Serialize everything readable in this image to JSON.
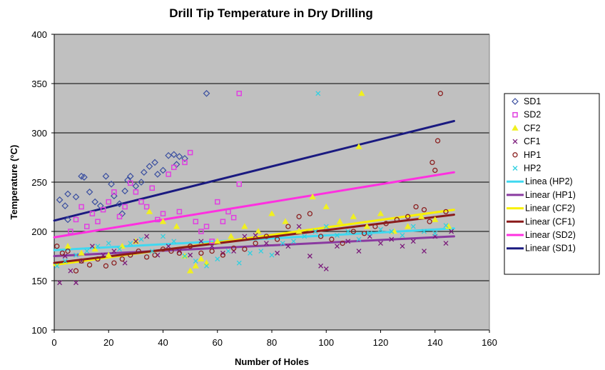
{
  "chart_data": {
    "type": "scatter",
    "title": "Drill Tip Temperature in Dry Drilling",
    "xlabel": "Number of Holes",
    "ylabel": "Temperature (°C)",
    "xlim": [
      0,
      160
    ],
    "ylim": [
      100,
      400
    ],
    "x_ticks": [
      0,
      20,
      40,
      60,
      80,
      100,
      120,
      140,
      160
    ],
    "y_ticks": [
      100,
      150,
      200,
      250,
      300,
      350,
      400
    ],
    "grid": "horizontal",
    "plot_background": "#c0c0c0",
    "legend_position": "right",
    "series": [
      {
        "name": "SD1",
        "marker": "diamond",
        "color": "#3a4fa0",
        "points": [
          [
            2,
            232
          ],
          [
            4,
            226
          ],
          [
            5,
            238
          ],
          [
            8,
            235
          ],
          [
            10,
            256
          ],
          [
            11,
            255
          ],
          [
            13,
            240
          ],
          [
            15,
            230
          ],
          [
            17,
            226
          ],
          [
            19,
            256
          ],
          [
            21,
            248
          ],
          [
            22,
            236
          ],
          [
            24,
            228
          ],
          [
            26,
            241
          ],
          [
            27,
            252
          ],
          [
            28,
            256
          ],
          [
            30,
            246
          ],
          [
            32,
            250
          ],
          [
            33,
            260
          ],
          [
            35,
            266
          ],
          [
            37,
            270
          ],
          [
            38,
            258
          ],
          [
            40,
            262
          ],
          [
            42,
            277
          ],
          [
            44,
            278
          ],
          [
            45,
            268
          ],
          [
            46,
            276
          ],
          [
            48,
            274
          ],
          [
            5,
            212
          ],
          [
            25,
            218
          ],
          [
            56,
            340
          ]
        ]
      },
      {
        "name": "SD2",
        "marker": "square",
        "color": "#e040e0",
        "points": [
          [
            6,
            200
          ],
          [
            8,
            212
          ],
          [
            10,
            225
          ],
          [
            12,
            205
          ],
          [
            14,
            218
          ],
          [
            16,
            210
          ],
          [
            18,
            222
          ],
          [
            20,
            230
          ],
          [
            22,
            240
          ],
          [
            24,
            215
          ],
          [
            26,
            225
          ],
          [
            28,
            249
          ],
          [
            30,
            240
          ],
          [
            32,
            230
          ],
          [
            34,
            225
          ],
          [
            36,
            244
          ],
          [
            38,
            212
          ],
          [
            40,
            218
          ],
          [
            42,
            258
          ],
          [
            44,
            265
          ],
          [
            46,
            220
          ],
          [
            48,
            270
          ],
          [
            50,
            280
          ],
          [
            52,
            210
          ],
          [
            54,
            200
          ],
          [
            56,
            205
          ],
          [
            58,
            190
          ],
          [
            60,
            230
          ],
          [
            62,
            210
          ],
          [
            64,
            220
          ],
          [
            66,
            214
          ],
          [
            68,
            248
          ],
          [
            68,
            340
          ]
        ]
      },
      {
        "name": "CF2",
        "marker": "triangle",
        "color": "#f0f020",
        "points": [
          [
            5,
            185
          ],
          [
            10,
            178
          ],
          [
            15,
            182
          ],
          [
            20,
            176
          ],
          [
            25,
            185
          ],
          [
            30,
            190
          ],
          [
            35,
            220
          ],
          [
            40,
            210
          ],
          [
            45,
            205
          ],
          [
            48,
            175
          ],
          [
            50,
            160
          ],
          [
            52,
            165
          ],
          [
            54,
            172
          ],
          [
            56,
            168
          ],
          [
            60,
            190
          ],
          [
            65,
            195
          ],
          [
            70,
            205
          ],
          [
            75,
            200
          ],
          [
            80,
            218
          ],
          [
            85,
            210
          ],
          [
            90,
            200
          ],
          [
            95,
            235
          ],
          [
            100,
            225
          ],
          [
            105,
            210
          ],
          [
            110,
            215
          ],
          [
            112,
            286
          ],
          [
            115,
            205
          ],
          [
            120,
            218
          ],
          [
            125,
            200
          ],
          [
            130,
            205
          ],
          [
            135,
            215
          ],
          [
            140,
            212
          ],
          [
            145,
            205
          ],
          [
            113,
            340
          ]
        ]
      },
      {
        "name": "CF1",
        "marker": "x",
        "color": "#7a1a7a",
        "points": [
          [
            2,
            148
          ],
          [
            4,
            175
          ],
          [
            6,
            160
          ],
          [
            8,
            148
          ],
          [
            10,
            170
          ],
          [
            14,
            185
          ],
          [
            18,
            176
          ],
          [
            22,
            180
          ],
          [
            26,
            168
          ],
          [
            30,
            190
          ],
          [
            34,
            195
          ],
          [
            38,
            176
          ],
          [
            42,
            185
          ],
          [
            46,
            180
          ],
          [
            50,
            176
          ],
          [
            54,
            190
          ],
          [
            58,
            185
          ],
          [
            62,
            178
          ],
          [
            66,
            180
          ],
          [
            70,
            195
          ],
          [
            74,
            196
          ],
          [
            78,
            188
          ],
          [
            82,
            178
          ],
          [
            86,
            185
          ],
          [
            90,
            205
          ],
          [
            94,
            175
          ],
          [
            98,
            165
          ],
          [
            100,
            162
          ],
          [
            104,
            185
          ],
          [
            108,
            190
          ],
          [
            112,
            180
          ],
          [
            116,
            195
          ],
          [
            120,
            188
          ],
          [
            124,
            192
          ],
          [
            128,
            185
          ],
          [
            132,
            190
          ],
          [
            136,
            180
          ],
          [
            140,
            195
          ],
          [
            144,
            188
          ],
          [
            146,
            200
          ]
        ]
      },
      {
        "name": "HP1",
        "marker": "circle",
        "color": "#8b2020",
        "points": [
          [
            1,
            185
          ],
          [
            3,
            178
          ],
          [
            5,
            180
          ],
          [
            8,
            160
          ],
          [
            10,
            170
          ],
          [
            13,
            166
          ],
          [
            16,
            172
          ],
          [
            19,
            165
          ],
          [
            22,
            168
          ],
          [
            25,
            172
          ],
          [
            28,
            176
          ],
          [
            31,
            180
          ],
          [
            34,
            174
          ],
          [
            37,
            176
          ],
          [
            40,
            182
          ],
          [
            43,
            180
          ],
          [
            46,
            178
          ],
          [
            50,
            185
          ],
          [
            54,
            178
          ],
          [
            58,
            180
          ],
          [
            62,
            176
          ],
          [
            66,
            183
          ],
          [
            70,
            182
          ],
          [
            74,
            188
          ],
          [
            78,
            195
          ],
          [
            82,
            192
          ],
          [
            86,
            205
          ],
          [
            90,
            215
          ],
          [
            94,
            218
          ],
          [
            98,
            195
          ],
          [
            102,
            192
          ],
          [
            106,
            188
          ],
          [
            110,
            200
          ],
          [
            114,
            198
          ],
          [
            118,
            205
          ],
          [
            122,
            208
          ],
          [
            126,
            212
          ],
          [
            130,
            215
          ],
          [
            133,
            225
          ],
          [
            136,
            222
          ],
          [
            138,
            210
          ],
          [
            140,
            262
          ],
          [
            141,
            292
          ],
          [
            139,
            270
          ],
          [
            142,
            340
          ],
          [
            144,
            220
          ]
        ]
      },
      {
        "name": "HP2",
        "marker": "x",
        "color": "#30d0e0",
        "points": [
          [
            1,
            165
          ],
          [
            4,
            170
          ],
          [
            8,
            176
          ],
          [
            12,
            180
          ],
          [
            16,
            185
          ],
          [
            20,
            188
          ],
          [
            24,
            182
          ],
          [
            28,
            188
          ],
          [
            32,
            192
          ],
          [
            36,
            180
          ],
          [
            40,
            195
          ],
          [
            44,
            190
          ],
          [
            48,
            175
          ],
          [
            52,
            170
          ],
          [
            56,
            165
          ],
          [
            60,
            172
          ],
          [
            64,
            180
          ],
          [
            68,
            168
          ],
          [
            72,
            178
          ],
          [
            76,
            180
          ],
          [
            80,
            176
          ],
          [
            84,
            188
          ],
          [
            88,
            190
          ],
          [
            92,
            195
          ],
          [
            96,
            200
          ],
          [
            97,
            340
          ],
          [
            100,
            205
          ],
          [
            104,
            196
          ],
          [
            108,
            200
          ],
          [
            112,
            192
          ],
          [
            116,
            198
          ],
          [
            120,
            202
          ],
          [
            124,
            200
          ],
          [
            128,
            196
          ],
          [
            132,
            205
          ],
          [
            136,
            200
          ],
          [
            140,
            198
          ],
          [
            144,
            206
          ]
        ]
      }
    ],
    "trendlines": [
      {
        "name": "Linea (HP2)",
        "color": "#40d8f0",
        "x": [
          0,
          147
        ],
        "y": [
          181,
          203
        ]
      },
      {
        "name": "Linear (HP1)",
        "color": "#8a3aa0",
        "x": [
          0,
          147
        ],
        "y": [
          175,
          195
        ]
      },
      {
        "name": "Linear (CF2)",
        "color": "#f8f000",
        "x": [
          0,
          147
        ],
        "y": [
          166,
          222
        ]
      },
      {
        "name": "Linear (CF1)",
        "color": "#8a1a1a",
        "x": [
          0,
          147
        ],
        "y": [
          168,
          217
        ]
      },
      {
        "name": "Linear (SD2)",
        "color": "#ff30e0",
        "x": [
          0,
          147
        ],
        "y": [
          194,
          260
        ]
      },
      {
        "name": "Linear (SD1)",
        "color": "#1a1a80",
        "x": [
          0,
          147
        ],
        "y": [
          211,
          312
        ]
      }
    ]
  }
}
